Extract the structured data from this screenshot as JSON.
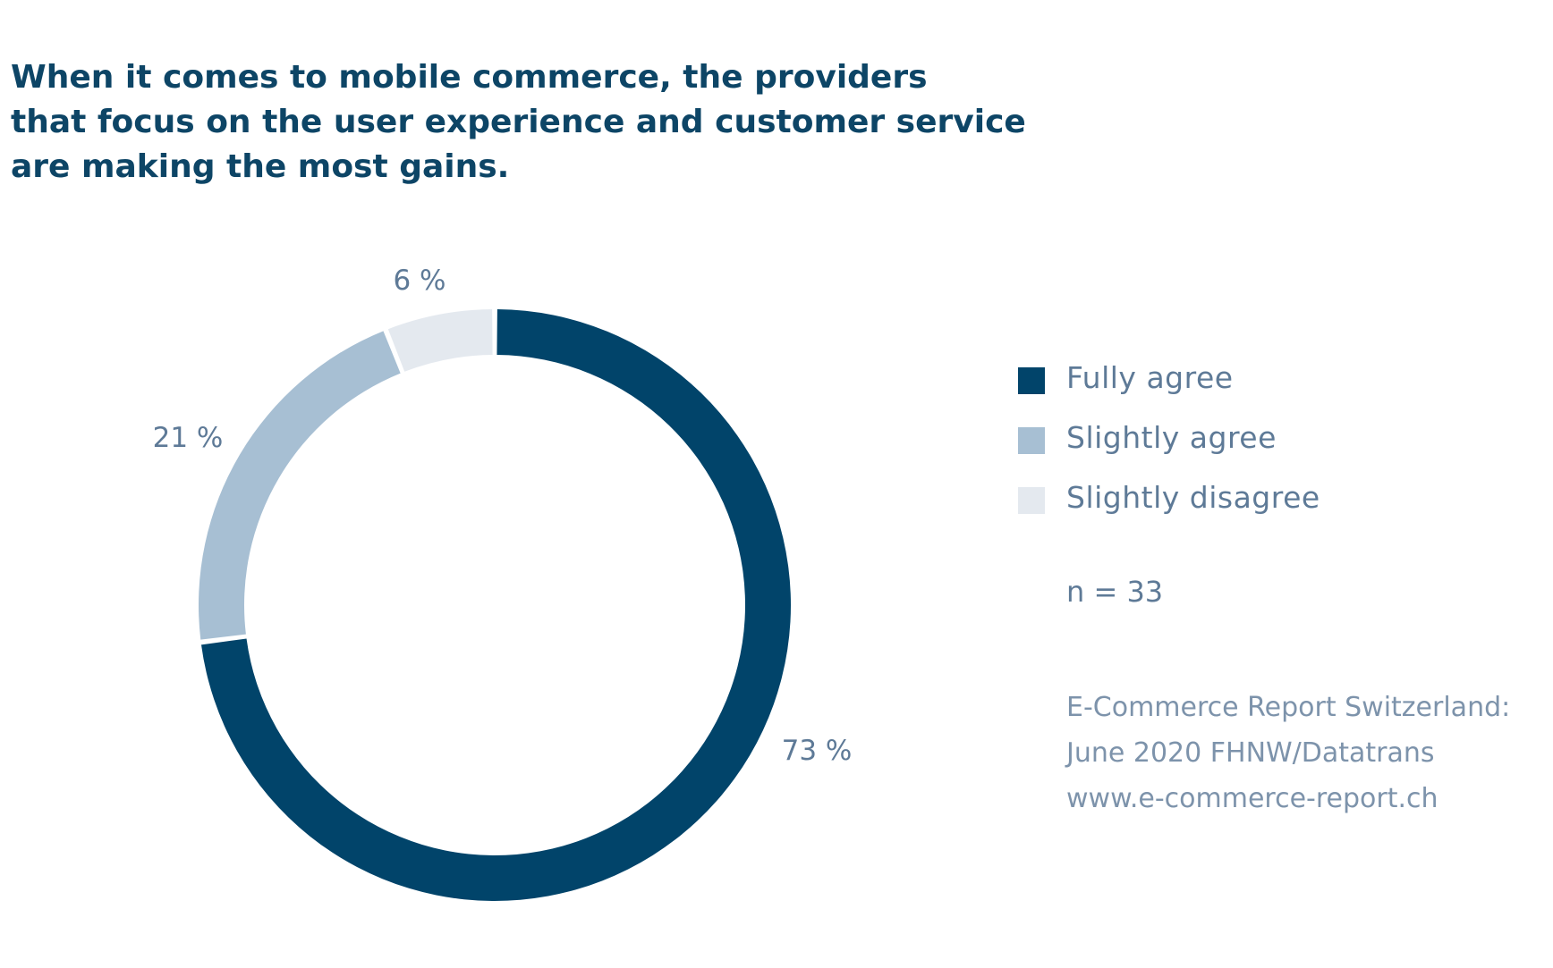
{
  "title_lines": [
    "When it comes to mobile commerce, the providers",
    "that focus on the user experience and customer service",
    "are making the most gains."
  ],
  "colors": {
    "fully_agree": "#01446a",
    "slightly_agree": "#a7bfd3",
    "slightly_disagree": "#e4e9ef",
    "title": "#0d4566",
    "label": "#5e7a97"
  },
  "chart_data": {
    "type": "pie",
    "variant": "donut",
    "title": "When it comes to mobile commerce, the providers that focus on the user experience and customer service are making the most gains.",
    "categories": [
      "Fully agree",
      "Slightly agree",
      "Slightly disagree"
    ],
    "values": [
      73,
      21,
      6
    ],
    "value_labels": [
      "73 %",
      "21 %",
      "6 %"
    ],
    "unit": "%",
    "legend_position": "right"
  },
  "legend": [
    {
      "label": "Fully agree"
    },
    {
      "label": "Slightly agree"
    },
    {
      "label": "Slightly disagree"
    }
  ],
  "sample_size": "n = 33",
  "source_lines": [
    "E-Commerce Report Switzerland:",
    "June 2020 FHNW/Datatrans",
    "www.e-commerce-report.ch"
  ]
}
